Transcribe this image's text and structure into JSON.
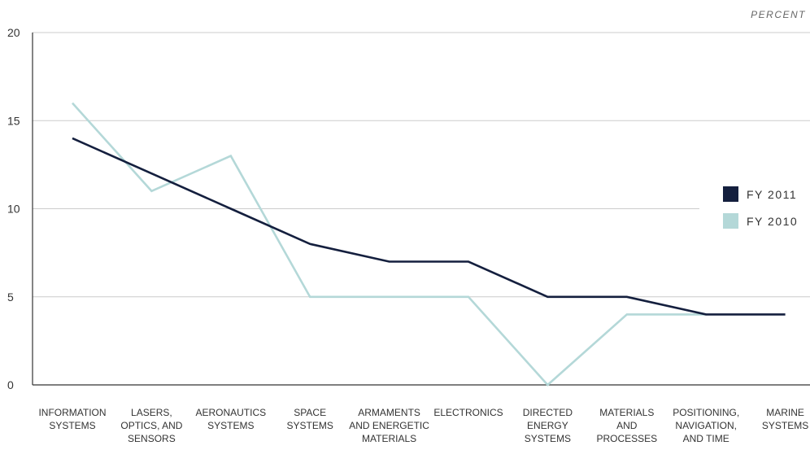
{
  "chart_data": {
    "type": "line",
    "unit_label": "PERCENT",
    "categories": [
      [
        "INFORMATION",
        "SYSTEMS"
      ],
      [
        "LASERS,",
        "OPTICS, AND",
        "SENSORS"
      ],
      [
        "AERONAUTICS",
        "SYSTEMS"
      ],
      [
        "SPACE",
        "SYSTEMS"
      ],
      [
        "ARMAMENTS",
        "AND ENERGETIC",
        "MATERIALS"
      ],
      [
        "ELECTRONICS"
      ],
      [
        "DIRECTED",
        "ENERGY",
        "SYSTEMS"
      ],
      [
        "MATERIALS",
        "AND",
        "PROCESSES"
      ],
      [
        "POSITIONING,",
        "NAVIGATION,",
        "AND TIME"
      ],
      [
        "MARINE",
        "SYSTEMS"
      ]
    ],
    "series": [
      {
        "name": "FY 2011",
        "color": "#141f3e",
        "values": [
          14,
          12,
          10,
          8,
          7,
          7,
          5,
          5,
          4,
          4
        ]
      },
      {
        "name": "FY 2010",
        "color": "#b4d8d8",
        "values": [
          16,
          11,
          13,
          5,
          5,
          5,
          0,
          4,
          4,
          null
        ]
      }
    ],
    "ylim": [
      0,
      20
    ],
    "yticks": [
      0,
      5,
      10,
      15,
      20
    ],
    "grid": true,
    "legend_position": "right"
  }
}
